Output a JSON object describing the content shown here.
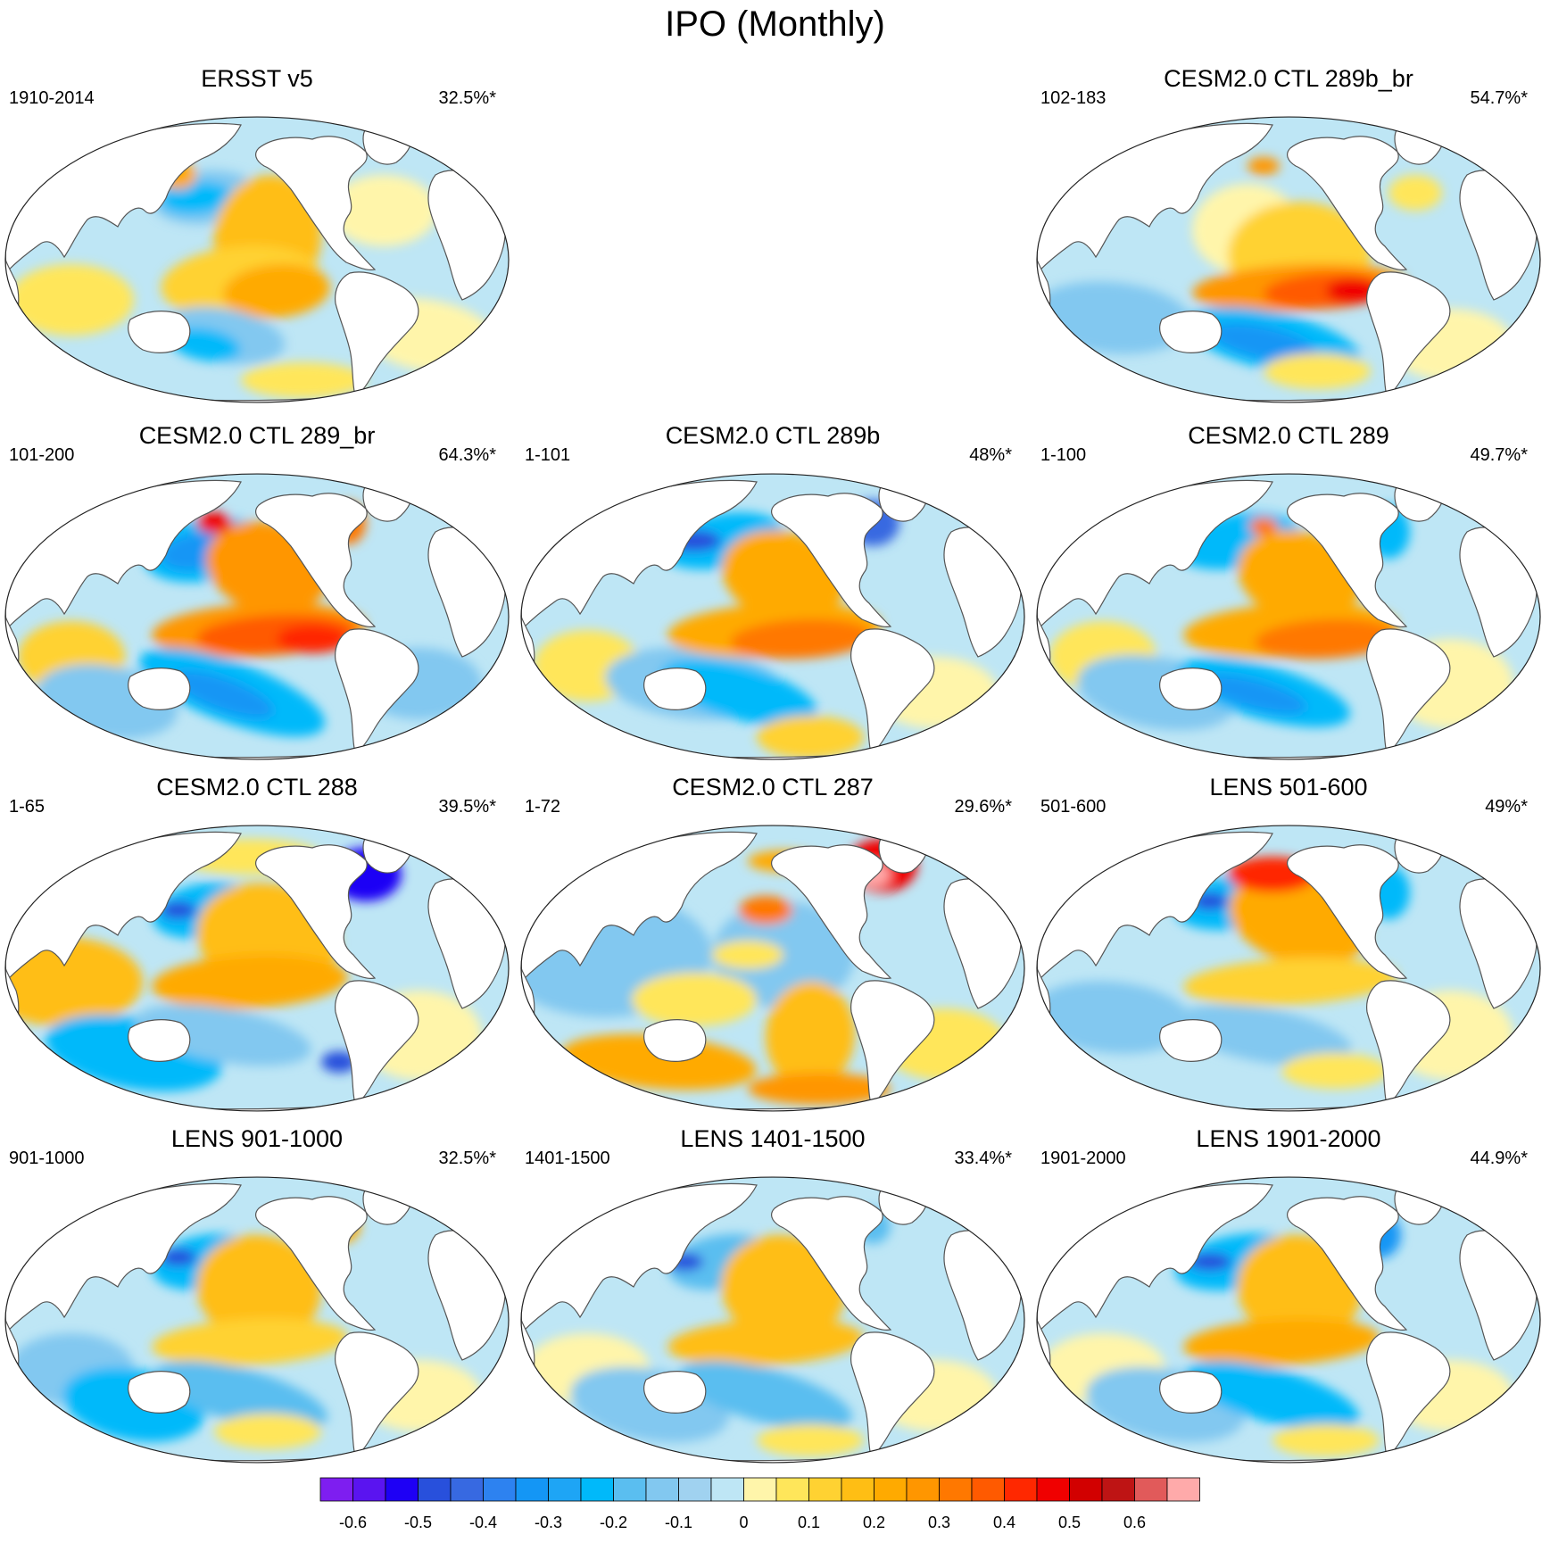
{
  "title": "IPO (Monthly)",
  "panels": [
    {
      "id": "ersst",
      "title": "ERSST v5",
      "years": "1910-2014",
      "variance": "32.5%*",
      "slot": 0
    },
    {
      "id": "ctl289b_br",
      "title": "CESM2.0 CTL 289b_br",
      "years": "102-183",
      "variance": "54.7%*",
      "slot": 2
    },
    {
      "id": "ctl289_br",
      "title": "CESM2.0 CTL 289_br",
      "years": "101-200",
      "variance": "64.3%*",
      "slot": 3
    },
    {
      "id": "ctl289b",
      "title": "CESM2.0 CTL 289b",
      "years": "1-101",
      "variance": "48%*",
      "slot": 4
    },
    {
      "id": "ctl289",
      "title": "CESM2.0 CTL 289",
      "years": "1-100",
      "variance": "49.7%*",
      "slot": 5
    },
    {
      "id": "ctl288",
      "title": "CESM2.0 CTL 288",
      "years": "1-65",
      "variance": "39.5%*",
      "slot": 6
    },
    {
      "id": "ctl287",
      "title": "CESM2.0 CTL 287",
      "years": "1-72",
      "variance": "29.6%*",
      "slot": 7
    },
    {
      "id": "lens501",
      "title": "LENS 501-600",
      "years": "501-600",
      "variance": "49%*",
      "slot": 8
    },
    {
      "id": "lens901",
      "title": "LENS 901-1000",
      "years": "901-1000",
      "variance": "32.5%*",
      "slot": 9
    },
    {
      "id": "lens1401",
      "title": "LENS 1401-1500",
      "years": "1401-1500",
      "variance": "33.4%*",
      "slot": 10
    },
    {
      "id": "lens1901",
      "title": "LENS 1901-2000",
      "years": "1901-2000",
      "variance": "44.9%*",
      "slot": 11
    }
  ],
  "colorbar": {
    "colors": [
      "#7e1ef0",
      "#5a14f0",
      "#1e00f5",
      "#2850dc",
      "#3769e1",
      "#2d82f0",
      "#1496f5",
      "#1ea5f5",
      "#00b9fa",
      "#5abef0",
      "#82c8f0",
      "#a0d2f0",
      "#bee6f5",
      "#fff5aa",
      "#ffe65a",
      "#ffd232",
      "#ffbe14",
      "#ffaa00",
      "#ff9600",
      "#ff7800",
      "#ff5a00",
      "#ff2800",
      "#f00000",
      "#d20000",
      "#be1414",
      "#e15a5a",
      "#ffaaaa"
    ],
    "tick_values": [
      -0.6,
      -0.5,
      -0.4,
      -0.3,
      -0.2,
      -0.1,
      0,
      0.1,
      0.2,
      0.3,
      0.4,
      0.5,
      0.6
    ],
    "tick_labels": [
      "-0.6",
      "-0.5",
      "-0.4",
      "-0.3",
      "-0.2",
      "-0.1",
      "0",
      "0.1",
      "0.2",
      "0.3",
      "0.4",
      "0.5",
      "0.6"
    ]
  }
}
